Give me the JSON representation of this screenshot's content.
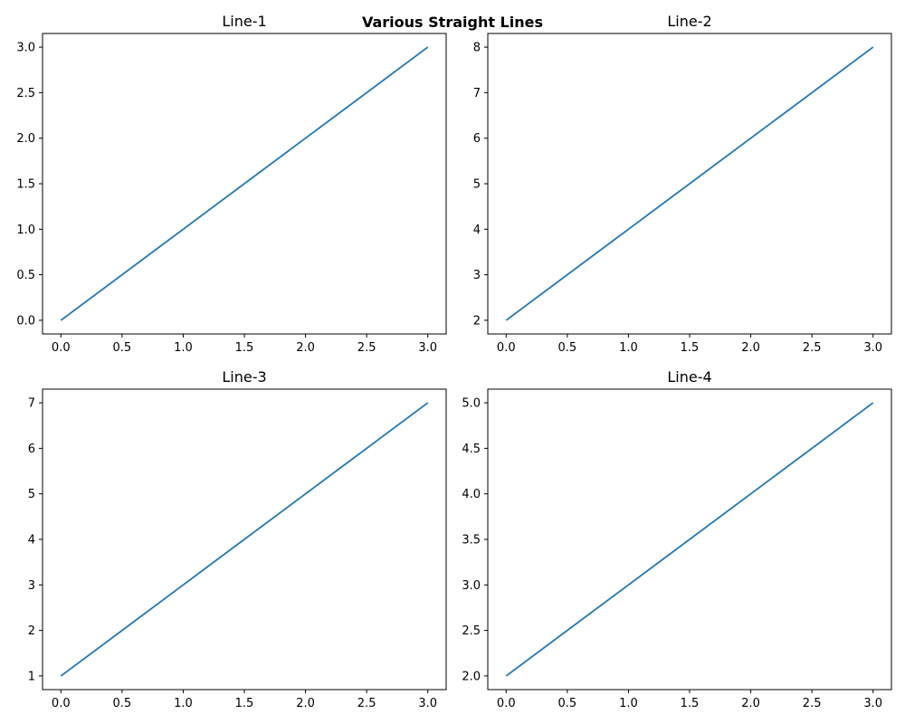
{
  "figure_title": "Various Straight Lines",
  "line_color": "#1f77b4",
  "chart_data": [
    {
      "type": "line",
      "title": "Line-1",
      "xlabel": "",
      "ylabel": "",
      "x": [
        0,
        1,
        2,
        3
      ],
      "series": [
        {
          "values": [
            0,
            1,
            2,
            3
          ]
        }
      ],
      "xlim": [
        -0.15,
        3.15
      ],
      "ylim": [
        -0.15,
        3.15
      ],
      "xticks": [
        0.0,
        0.5,
        1.0,
        1.5,
        2.0,
        2.5,
        3.0
      ],
      "xtick_labels": [
        "0.0",
        "0.5",
        "1.0",
        "1.5",
        "2.0",
        "2.5",
        "3.0"
      ],
      "yticks": [
        0.0,
        0.5,
        1.0,
        1.5,
        2.0,
        2.5,
        3.0
      ],
      "ytick_labels": [
        "0.0",
        "0.5",
        "1.0",
        "1.5",
        "2.0",
        "2.5",
        "3.0"
      ],
      "grid": false
    },
    {
      "type": "line",
      "title": "Line-2",
      "xlabel": "",
      "ylabel": "",
      "x": [
        0,
        1,
        2,
        3
      ],
      "series": [
        {
          "values": [
            2,
            4,
            6,
            8
          ]
        }
      ],
      "xlim": [
        -0.15,
        3.15
      ],
      "ylim": [
        1.7,
        8.3
      ],
      "xticks": [
        0.0,
        0.5,
        1.0,
        1.5,
        2.0,
        2.5,
        3.0
      ],
      "xtick_labels": [
        "0.0",
        "0.5",
        "1.0",
        "1.5",
        "2.0",
        "2.5",
        "3.0"
      ],
      "yticks": [
        2,
        3,
        4,
        5,
        6,
        7,
        8
      ],
      "ytick_labels": [
        "2",
        "3",
        "4",
        "5",
        "6",
        "7",
        "8"
      ],
      "grid": false
    },
    {
      "type": "line",
      "title": "Line-3",
      "xlabel": "",
      "ylabel": "",
      "x": [
        0,
        1,
        2,
        3
      ],
      "series": [
        {
          "values": [
            1,
            3,
            5,
            7
          ]
        }
      ],
      "xlim": [
        -0.15,
        3.15
      ],
      "ylim": [
        0.7,
        7.3
      ],
      "xticks": [
        0.0,
        0.5,
        1.0,
        1.5,
        2.0,
        2.5,
        3.0
      ],
      "xtick_labels": [
        "0.0",
        "0.5",
        "1.0",
        "1.5",
        "2.0",
        "2.5",
        "3.0"
      ],
      "yticks": [
        1,
        2,
        3,
        4,
        5,
        6,
        7
      ],
      "ytick_labels": [
        "1",
        "2",
        "3",
        "4",
        "5",
        "6",
        "7"
      ],
      "grid": false
    },
    {
      "type": "line",
      "title": "Line-4",
      "xlabel": "",
      "ylabel": "",
      "x": [
        0,
        1,
        2,
        3
      ],
      "series": [
        {
          "values": [
            2,
            3,
            4,
            5
          ]
        }
      ],
      "xlim": [
        -0.15,
        3.15
      ],
      "ylim": [
        1.85,
        5.15
      ],
      "xticks": [
        0.0,
        0.5,
        1.0,
        1.5,
        2.0,
        2.5,
        3.0
      ],
      "xtick_labels": [
        "0.0",
        "0.5",
        "1.0",
        "1.5",
        "2.0",
        "2.5",
        "3.0"
      ],
      "yticks": [
        2.0,
        2.5,
        3.0,
        3.5,
        4.0,
        4.5,
        5.0
      ],
      "ytick_labels": [
        "2.0",
        "2.5",
        "3.0",
        "3.5",
        "4.0",
        "4.5",
        "5.0"
      ],
      "grid": false
    }
  ]
}
